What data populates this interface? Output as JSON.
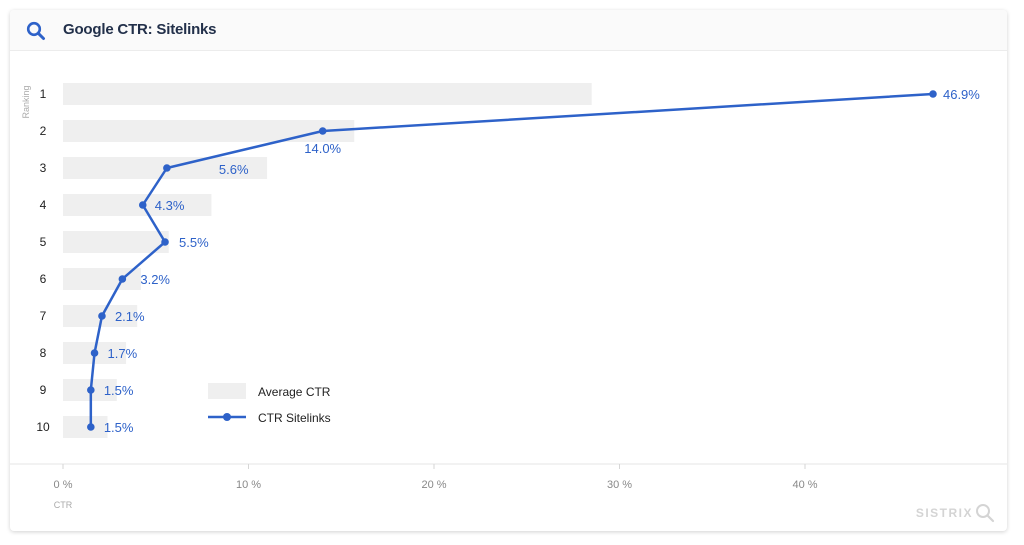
{
  "header": {
    "title": "Google CTR: Sitelinks"
  },
  "brand": {
    "name": "SISTRIX"
  },
  "colors": {
    "line": "#2e62c9",
    "bar": "#efefef",
    "tick_text": "#888888",
    "title_text": "#22304a"
  },
  "chart_data": {
    "type": "bar",
    "orientation": "horizontal",
    "categories": [
      "1",
      "2",
      "3",
      "4",
      "5",
      "6",
      "7",
      "8",
      "9",
      "10"
    ],
    "series": [
      {
        "name": "Average CTR",
        "type": "bar",
        "values": [
          28.5,
          15.7,
          11.0,
          8.0,
          5.7,
          4.2,
          4.0,
          3.4,
          2.9,
          2.4
        ]
      },
      {
        "name": "CTR Sitelinks",
        "type": "line",
        "values": [
          46.9,
          14.0,
          5.6,
          4.3,
          5.5,
          3.2,
          2.1,
          1.7,
          1.5,
          1.5
        ],
        "labels": [
          "46.9%",
          "14.0%",
          "5.6%",
          "4.3%",
          "5.5%",
          "3.2%",
          "2.1%",
          "1.7%",
          "1.5%",
          "1.5%"
        ]
      }
    ],
    "xlabel": "CTR",
    "ylabel": "Ranking",
    "xlim": [
      0,
      50
    ],
    "xticks": [
      0,
      10,
      20,
      30,
      40
    ],
    "xtick_labels": [
      "0 %",
      "10 %",
      "20 %",
      "30 %",
      "40 %"
    ],
    "legend_position": "bottom-left",
    "grid": false
  }
}
